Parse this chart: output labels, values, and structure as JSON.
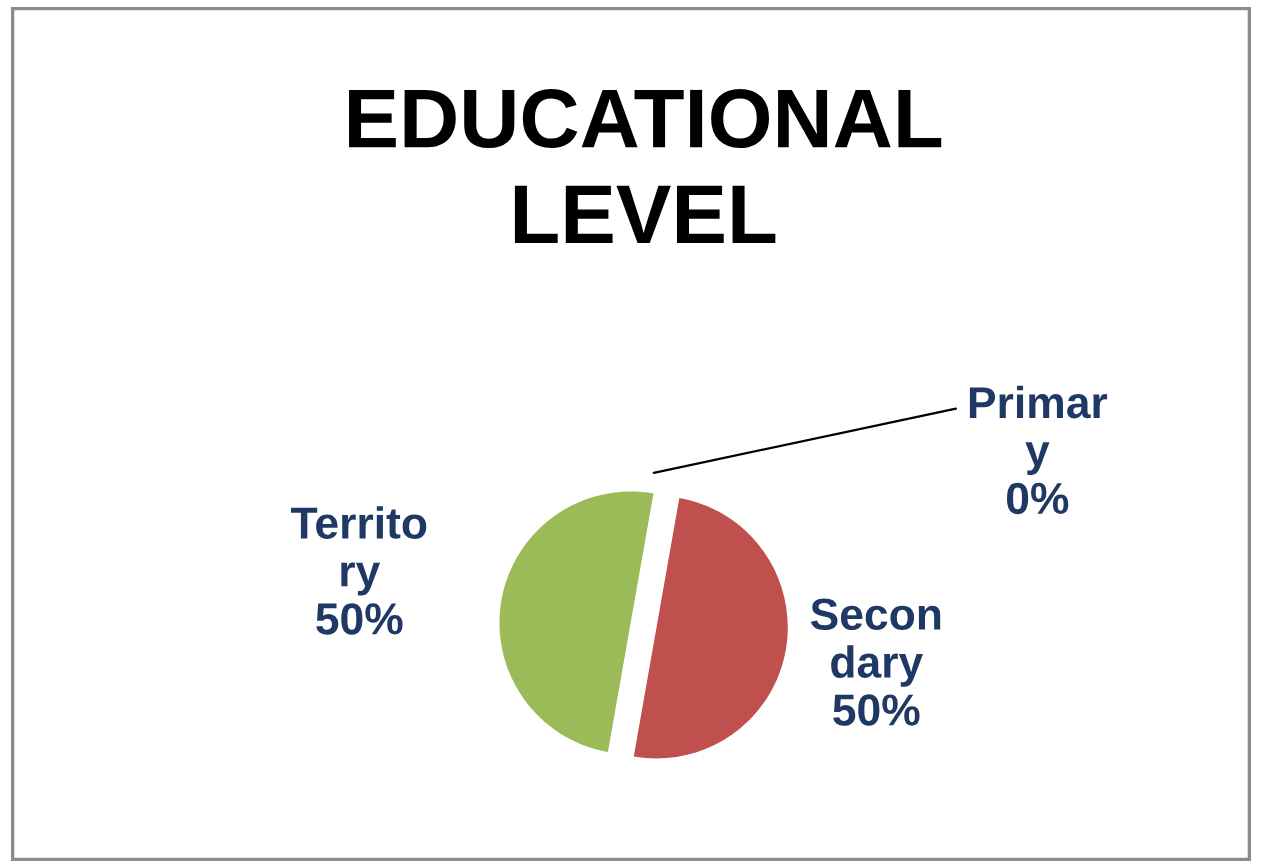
{
  "chart_data": {
    "type": "pie",
    "title": "EDUCATIONAL\nLEVEL",
    "categories": [
      "Primar\ny",
      "Secon\ndary",
      "Territo\nry"
    ],
    "values": [
      0,
      50,
      50
    ],
    "colors": [
      "#4f81bd",
      "#c0504d",
      "#9bbb59"
    ],
    "value_labels": [
      "0%",
      "50%",
      "50%"
    ],
    "legend": false
  }
}
